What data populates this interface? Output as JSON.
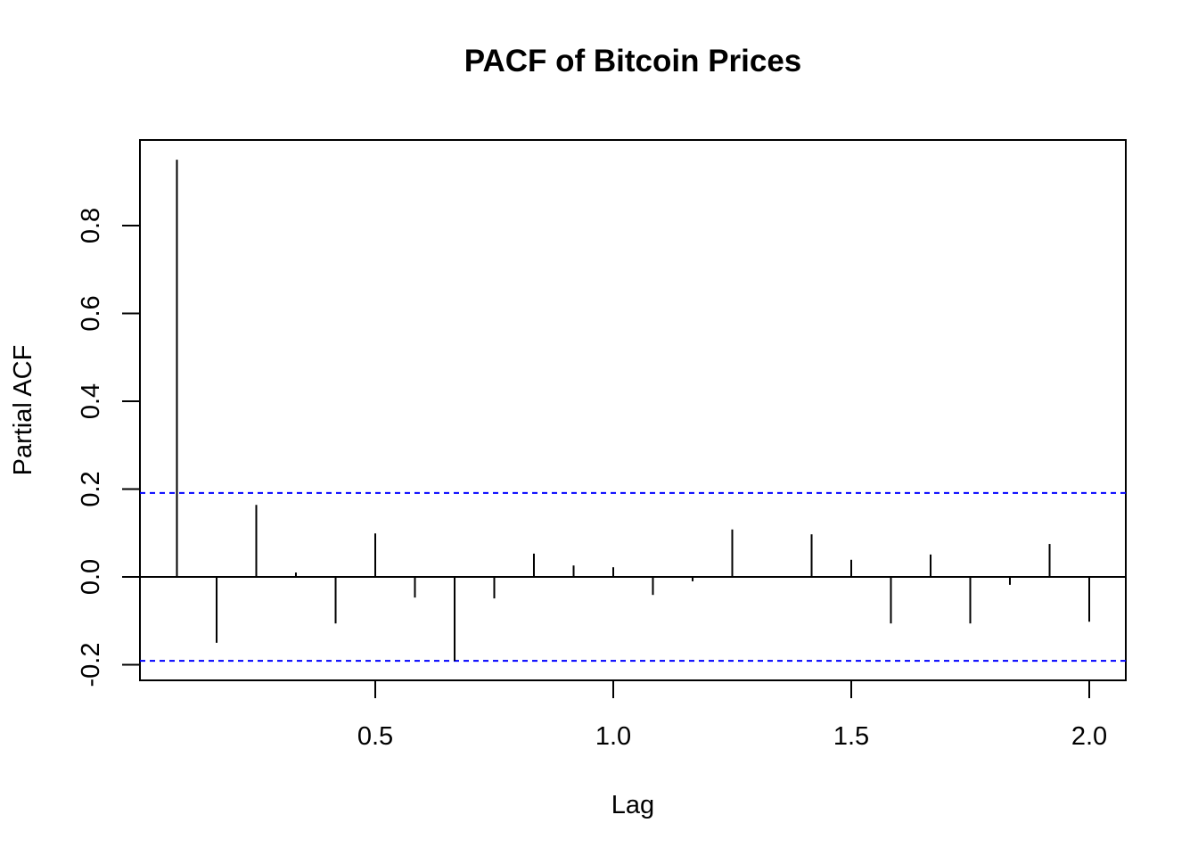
{
  "chart_data": {
    "type": "bar",
    "title": "PACF of Bitcoin Prices",
    "xlabel": "Lag",
    "ylabel": "Partial ACF",
    "x_ticks": [
      "0.5",
      "1.0",
      "1.5",
      "2.0"
    ],
    "x_tick_values": [
      0.5,
      1.0,
      1.5,
      2.0
    ],
    "y_ticks": [
      "-0.2",
      "0.0",
      "0.2",
      "0.4",
      "0.6",
      "0.8"
    ],
    "y_tick_values": [
      -0.2,
      0.0,
      0.2,
      0.4,
      0.6,
      0.8
    ],
    "xlim": [
      0.0,
      2.08
    ],
    "ylim": [
      -0.237,
      0.994
    ],
    "lags": [
      0.0833,
      0.1667,
      0.25,
      0.3333,
      0.4167,
      0.5,
      0.5833,
      0.6667,
      0.75,
      0.8333,
      0.9167,
      1.0,
      1.0833,
      1.1667,
      1.25,
      1.3333,
      1.4167,
      1.5,
      1.5833,
      1.6667,
      1.75,
      1.8333,
      1.9167,
      2.0
    ],
    "values": [
      0.95,
      -0.15,
      0.164,
      0.01,
      -0.106,
      0.099,
      -0.047,
      -0.191,
      -0.049,
      0.053,
      0.026,
      0.022,
      -0.041,
      -0.01,
      0.108,
      0.002,
      0.097,
      0.039,
      -0.106,
      0.051,
      -0.106,
      -0.018,
      0.075,
      -0.102
    ],
    "confidence_bound": 0.191,
    "confidence_color": "#0000ff",
    "grid": false
  }
}
